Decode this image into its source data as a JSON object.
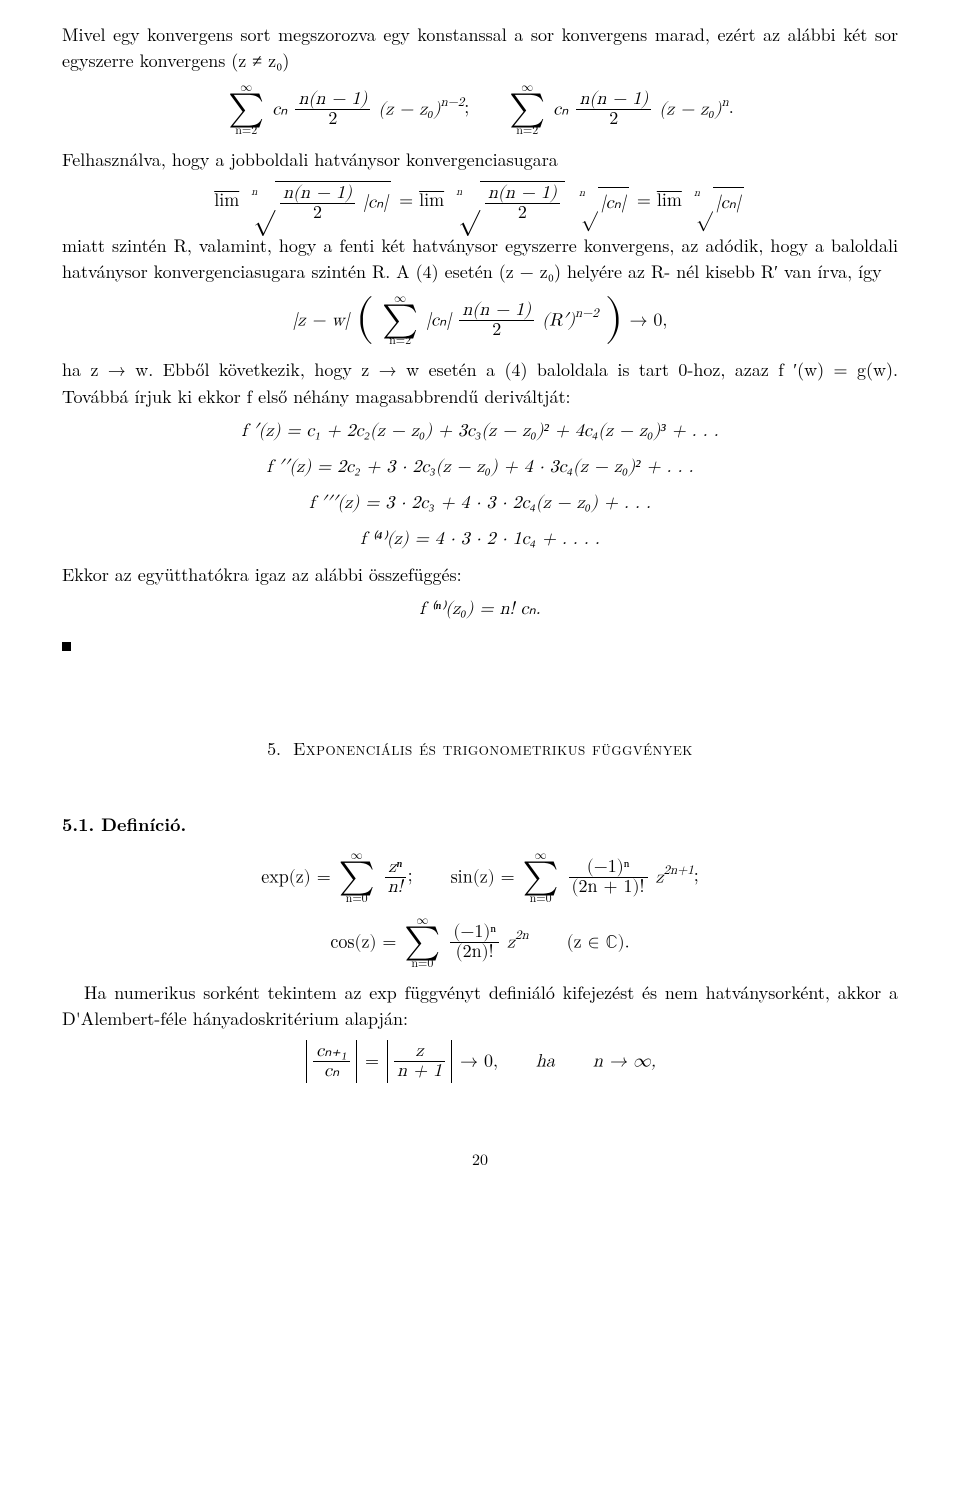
{
  "para1": "Mivel egy konvergens sort megszorozva egy konstanssal a sor konvergens marad, ezért az alábbi két sor egyszerre konvergens (z ≠ z₀)",
  "disp1": {
    "sum_top": "∞",
    "sum_bot": "n=2",
    "term1_coeff": "cₙ",
    "term1_frac_num": "n(n − 1)",
    "term1_frac_den": "2",
    "term1_tail": "(z − z₀)",
    "term1_exp": "n−2",
    "sep": ";",
    "term2_tail": "(z − z₀)",
    "term2_exp": "n",
    "dot": "."
  },
  "para2": "Felhasználva, hogy a jobboldali hatványsor konvergenciasugara",
  "disp2": {
    "lim": "lim",
    "root_deg": "n",
    "frac_num": "n(n − 1)",
    "frac_den": "2",
    "cn": "|cₙ|",
    "eq": " = "
  },
  "para3": "miatt szintén R, valamint, hogy a fenti két hatványsor egyszerre konvergens, az adódik, hogy a baloldali hatványsor konvergenciasugara szintén R. A (4) esetén (z − z₀) helyére az R- nél kisebb R′ van írva, így",
  "disp3": {
    "head": "|z − w|",
    "sum_top": "∞",
    "sum_bot": "n=2",
    "inner": "|cₙ|",
    "frac_num": "n(n − 1)",
    "frac_den": "2",
    "tail": "(R′)",
    "exp": "n−2",
    "arrow": " → 0,"
  },
  "para4": "ha z → w. Ebből következik, hogy z → w esetén a (4) baloldala is tart 0-hoz, azaz f ′(w) = g(w).  Továbbá írjuk ki ekkor f első néhány magasabbrendű deriváltját:",
  "derivs": {
    "d1": "f ′(z) = c₁ + 2c₂(z − z₀) + 3c₃(z − z₀)² + 4c₄(z − z₀)³ + . . .",
    "d2": "f ′′(z) = 2c₂ + 3 · 2c₃(z − z₀) + 4 · 3c₄(z − z₀)² + . . .",
    "d3": "f ′′′(z) = 3 · 2c₃ + 4 · 3 · 2c₄(z − z₀) + . . .",
    "d4": "f ⁽⁴⁾(z) = 4 · 3 · 2 · 1c₄ + . . . ."
  },
  "para5": "Ekkor az együtthatókra igaz az alábbi összefüggés:",
  "disp5": "f ⁽ⁿ⁾(z₀) = n! cₙ.",
  "section": {
    "num": "5.",
    "title": "Exponenciális és trigonometrikus függvények"
  },
  "def_head": "5.1. Definíció.",
  "defs": {
    "sum_top": "∞",
    "sum_bot": "n=0",
    "exp_lhs": "exp(z) = ",
    "exp_frac_num": "zⁿ",
    "exp_frac_den": "n!",
    "sin_lhs": "sin(z) = ",
    "sin_frac_num": "(−1)ⁿ",
    "sin_frac_den": "(2n + 1)!",
    "sin_tail": "z",
    "sin_exp": "2n+1",
    "cos_lhs": "cos(z) = ",
    "cos_frac_num": "(−1)ⁿ",
    "cos_frac_den": "(2n)!",
    "cos_tail": "z",
    "cos_exp": "2n",
    "dom": "(z ∈ ℂ).",
    "sep": ";"
  },
  "para6": "Ha numerikus sorként tekintem az exp függvényt definiáló kifejezést és nem hatványsorként, akkor a D'Alembert-féle hányadoskritérium alapján:",
  "disp6": {
    "lfrac_num": "cₙ₊₁",
    "lfrac_den": "cₙ",
    "eq": " = ",
    "rfrac_num": "z",
    "rfrac_den": "n + 1",
    "arrow": " → 0,",
    "ha": "ha",
    "lim": "n → ∞,"
  },
  "page": "20"
}
